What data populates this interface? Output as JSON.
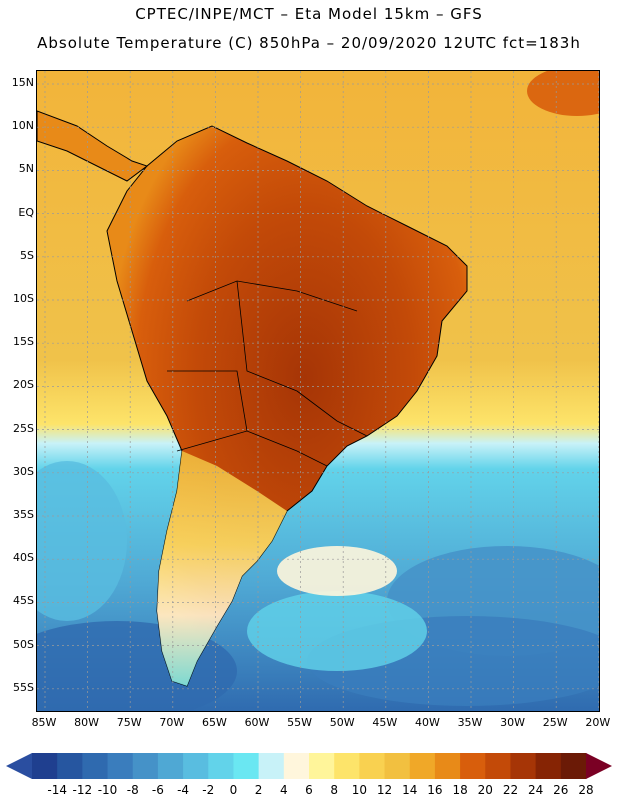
{
  "header": {
    "title_line1": "CPTEC/INPE/MCT –  Eta Model 15km – GFS",
    "title_line2": "Absolute Temperature (C) 850hPa – 20/09/2020 12UTC fct=183h"
  },
  "map": {
    "lat_labels": [
      "15N",
      "10N",
      "5N",
      "EQ",
      "5S",
      "10S",
      "15S",
      "20S",
      "25S",
      "30S",
      "35S",
      "40S",
      "45S",
      "50S",
      "55S"
    ],
    "lon_labels": [
      "85W",
      "80W",
      "75W",
      "70W",
      "65W",
      "60W",
      "55W",
      "50W",
      "45W",
      "40W",
      "35W",
      "30W",
      "25W",
      "20W"
    ]
  },
  "colorbar": {
    "labels": [
      "-14",
      "-12",
      "-10",
      "-8",
      "-6",
      "-4",
      "-2",
      "0",
      "2",
      "4",
      "6",
      "8",
      "10",
      "12",
      "14",
      "16",
      "18",
      "20",
      "22",
      "24",
      "26",
      "28"
    ],
    "colors": [
      "#1f3f8f",
      "#2656a0",
      "#2f6aaf",
      "#3a7dbd",
      "#4592c8",
      "#4fa8d4",
      "#59bde0",
      "#62d3ea",
      "#6ae7f2",
      "#c8f2f8",
      "#fff6dc",
      "#fff59a",
      "#fde46a",
      "#f9d150",
      "#f2c040",
      "#f0a828",
      "#e88a18",
      "#d85e0c",
      "#c34a08",
      "#a63506",
      "#862404",
      "#6b1a06"
    ],
    "left_triangle_color": "#2a4ea0",
    "right_triangle_color": "#7a0024"
  },
  "palette": {
    "ocean_cold": "#3a8cc8",
    "ocean_cool": "#55c4e4",
    "ocean_warm": "#f2c040",
    "land_hot": "#c3530a",
    "land_warm": "#e88a18",
    "coastline": "#000000",
    "gridline": "#9a9a9a"
  }
}
